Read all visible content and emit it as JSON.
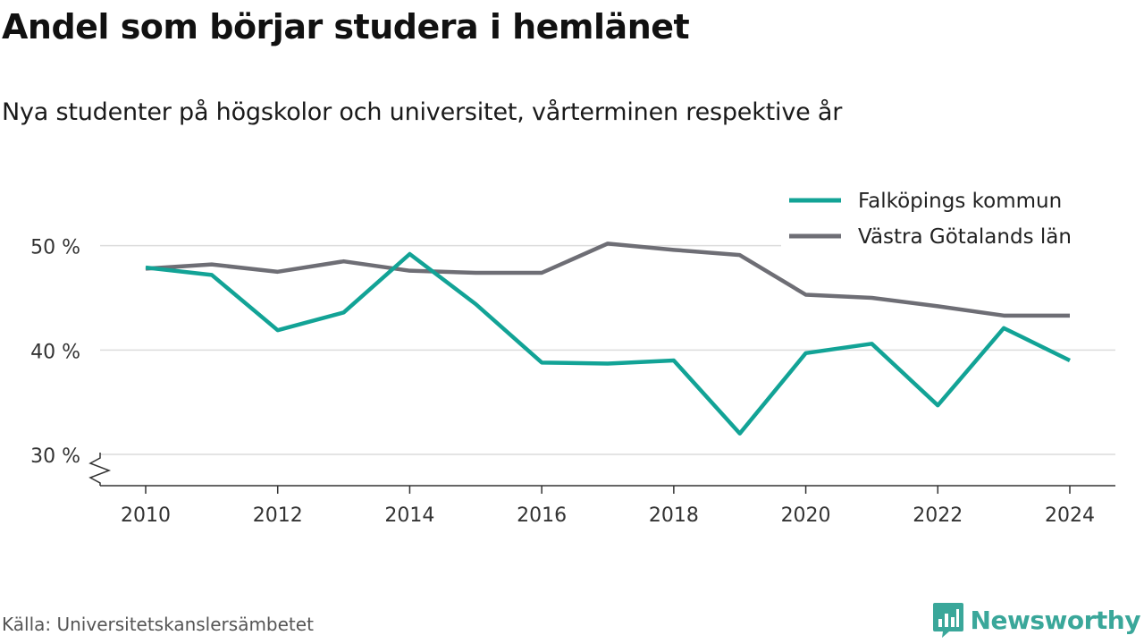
{
  "title": "Andel som börjar studera i hemlänet",
  "subtitle": "Nya studenter på högskolor och universitet, vårterminen respektive år",
  "source": "Källa: Universitetskanslersämbetet",
  "brand": {
    "name": "Newsworthy",
    "icon": "newsworthy-logo-icon",
    "color": "#3aa79a"
  },
  "chart_data": {
    "type": "line",
    "x": [
      2010,
      2011,
      2012,
      2013,
      2014,
      2015,
      2016,
      2017,
      2018,
      2019,
      2020,
      2021,
      2022,
      2023,
      2024
    ],
    "x_ticks": [
      "2010",
      "2012",
      "2014",
      "2016",
      "2018",
      "2020",
      "2022",
      "2024"
    ],
    "y_ticks": [
      "30 %",
      "40 %",
      "50 %"
    ],
    "ylim": [
      27,
      54
    ],
    "grid": true,
    "legend_position": "top-right",
    "axis_break": true,
    "series": [
      {
        "name": "Falköpings kommun",
        "color": "#12a396",
        "values": [
          47.9,
          47.2,
          41.9,
          43.6,
          49.2,
          44.4,
          38.8,
          38.7,
          39.0,
          32.0,
          39.7,
          40.6,
          34.7,
          42.1,
          39.0
        ]
      },
      {
        "name": "Västra Götalands län",
        "color": "#6e6e75",
        "values": [
          47.8,
          48.2,
          47.5,
          48.5,
          47.6,
          47.4,
          47.4,
          50.2,
          49.6,
          49.1,
          45.3,
          45.0,
          44.2,
          43.3,
          43.3
        ]
      }
    ]
  }
}
